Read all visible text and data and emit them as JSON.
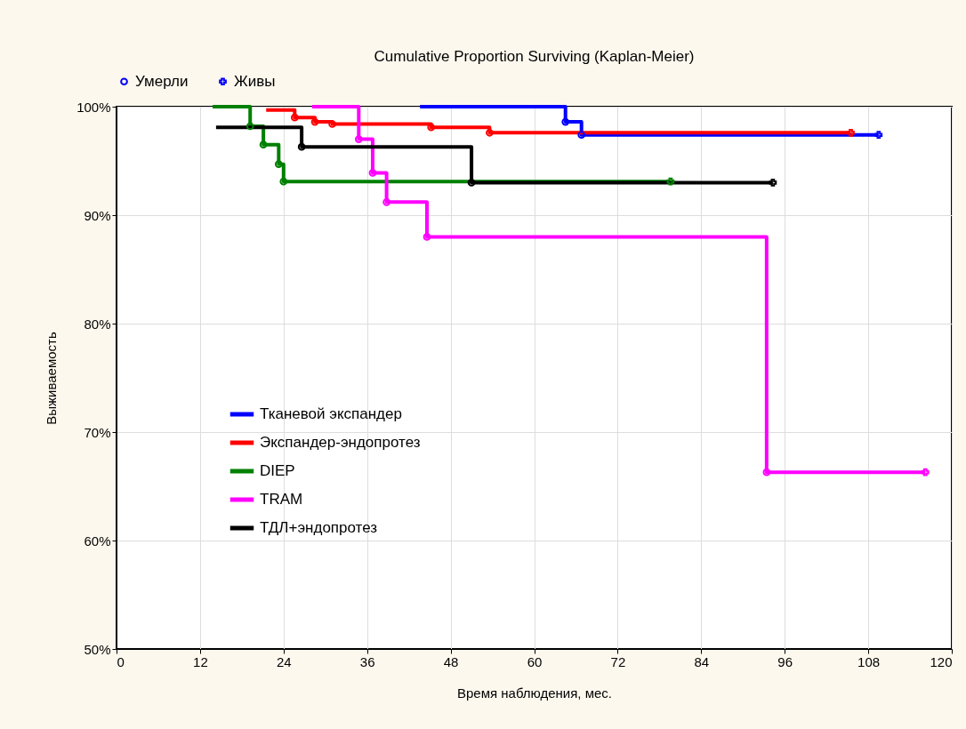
{
  "chart_data": {
    "type": "step",
    "title": "Cumulative Proportion Surviving (Kaplan-Meier)",
    "xlabel": "Время наблюдения, мес.",
    "ylabel": "Выживаемость",
    "xlim": [
      0,
      120
    ],
    "xticks": [
      0,
      12,
      24,
      36,
      48,
      60,
      72,
      84,
      96,
      108,
      120
    ],
    "ylim": [
      50,
      100
    ],
    "yticks": [
      {
        "value": 50,
        "label": "50%"
      },
      {
        "value": 60,
        "label": "60%"
      },
      {
        "value": 70,
        "label": "70%"
      },
      {
        "value": 80,
        "label": "80%"
      },
      {
        "value": 90,
        "label": "90%"
      },
      {
        "value": 100,
        "label": "100%"
      }
    ],
    "grid": true,
    "legend": "left",
    "line_style": "solid",
    "series": [
      {
        "name": "Тканевой экспандер",
        "color": "#0000ff",
        "x": [
          43.6,
          64.5,
          66.8,
          109.5
        ],
        "values": [
          100,
          98.6,
          97.4,
          97.4
        ]
      },
      {
        "name": "Экспандер-эндопротез",
        "color": "#ff0000",
        "x": [
          21.5,
          25.6,
          28.5,
          31,
          45.2,
          53.6,
          105.5
        ],
        "values": [
          99.7,
          99.0,
          98.6,
          98.4,
          98.1,
          97.6,
          97.6
        ]
      },
      {
        "name": "DIEP",
        "color": "#008000",
        "x": [
          13.8,
          19.2,
          21.1,
          23.3,
          24.0,
          79.6
        ],
        "values": [
          100,
          98.2,
          96.5,
          94.7,
          93.1,
          93.1
        ]
      },
      {
        "name": "TRAM",
        "color": "#ff00ff",
        "x": [
          28.1,
          34.8,
          36.8,
          38.8,
          44.6,
          93.4,
          116.2
        ],
        "values": [
          100,
          97.0,
          93.9,
          91.2,
          88.0,
          66.3,
          66.3
        ]
      },
      {
        "name": "ТДЛ+эндопротез",
        "color": "#000000",
        "x": [
          14.3,
          26.6,
          51.0,
          94.3
        ],
        "values": [
          98.1,
          96.3,
          93.0,
          93.0
        ]
      },
      {
        "name": "Умерли",
        "type": "scatter",
        "marker": "circle",
        "x": [
          64.5,
          66.8,
          25.6,
          28.5,
          31,
          45.2,
          53.6,
          19.2,
          21.1,
          23.3,
          24.0,
          34.8,
          36.8,
          38.8,
          44.6,
          93.4,
          26.6,
          51.0
        ],
        "values": [
          98.6,
          97.4,
          99.0,
          98.6,
          98.4,
          98.1,
          97.6,
          98.2,
          96.5,
          94.7,
          93.1,
          97.0,
          93.9,
          91.2,
          88.0,
          66.3,
          96.3,
          93.0
        ],
        "colors": [
          "#0000ff",
          "#0000ff",
          "#ff0000",
          "#ff0000",
          "#ff0000",
          "#ff0000",
          "#ff0000",
          "#008000",
          "#008000",
          "#008000",
          "#008000",
          "#ff00ff",
          "#ff00ff",
          "#ff00ff",
          "#ff00ff",
          "#ff00ff",
          "#000000",
          "#000000"
        ]
      },
      {
        "name": "Живы",
        "type": "scatter",
        "marker": "cross",
        "x": [
          109.5,
          105.5,
          79.6,
          116.2,
          94.3
        ],
        "values": [
          97.4,
          97.6,
          93.1,
          66.3,
          93.0
        ],
        "colors": [
          "#0000ff",
          "#ff0000",
          "#008000",
          "#ff00ff",
          "#000000"
        ]
      }
    ]
  }
}
